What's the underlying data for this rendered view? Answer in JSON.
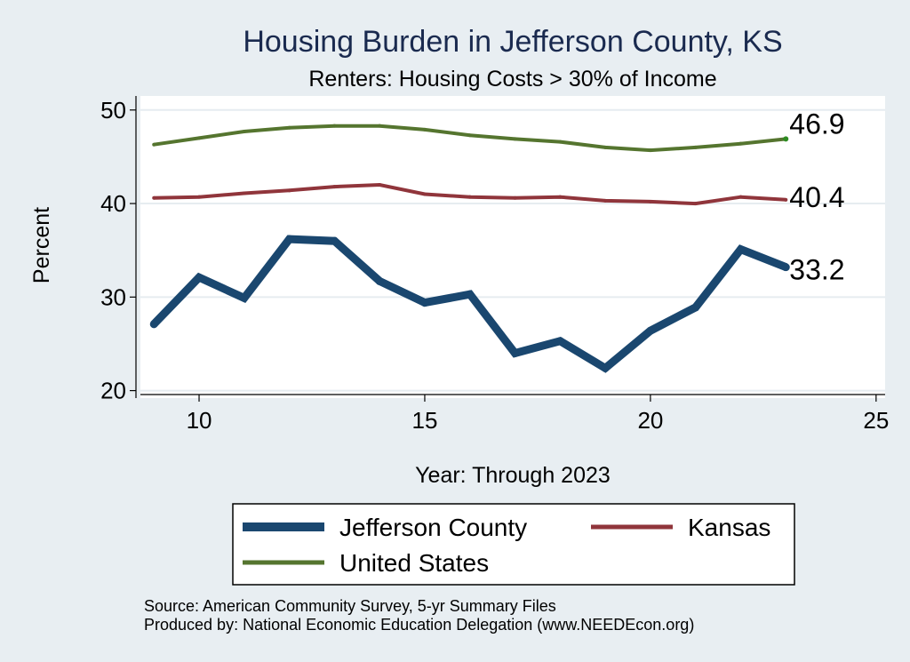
{
  "chart_data": {
    "type": "line",
    "title": "Housing Burden in Jefferson County, KS",
    "subtitle": "Renters: Housing Costs > 30% of Income",
    "xlabel": "Year: Through 2023",
    "ylabel": "Percent",
    "xlim": [
      8.7,
      25.2
    ],
    "ylim": [
      19.2,
      51.5
    ],
    "x_ticks": [
      "10",
      "15",
      "20",
      "25"
    ],
    "y_ticks": [
      "20",
      "30",
      "40",
      "50"
    ],
    "grid": true,
    "legend_position": "bottom",
    "x": [
      9,
      10,
      11,
      12,
      13,
      14,
      15,
      16,
      17,
      18,
      19,
      20,
      21,
      22,
      23
    ],
    "series": [
      {
        "name": "Jefferson County",
        "color": "#1a476f",
        "width": "thick",
        "end_label": "33.2",
        "values": [
          27.1,
          32.1,
          29.9,
          36.2,
          36.0,
          31.7,
          29.4,
          30.3,
          24.0,
          25.3,
          22.4,
          26.4,
          28.9,
          35.1,
          33.2
        ]
      },
      {
        "name": "Kansas",
        "color": "#90353b",
        "width": "thin",
        "end_label": "40.4",
        "values": [
          40.6,
          40.7,
          41.1,
          41.4,
          41.8,
          42.0,
          41.0,
          40.7,
          40.6,
          40.7,
          40.3,
          40.2,
          40.0,
          40.7,
          40.4
        ]
      },
      {
        "name": "United States",
        "color": "#55752f",
        "width": "thin",
        "end_label": "46.9",
        "values": [
          46.3,
          47.0,
          47.7,
          48.1,
          48.3,
          48.3,
          47.9,
          47.3,
          46.9,
          46.6,
          46.0,
          45.7,
          46.0,
          46.4,
          46.9
        ]
      }
    ],
    "notes": [
      "Source: American Community Survey, 5-yr Summary Files",
      "Produced by: National Economic Education Delegation (www.NEEDEcon.org)"
    ]
  }
}
